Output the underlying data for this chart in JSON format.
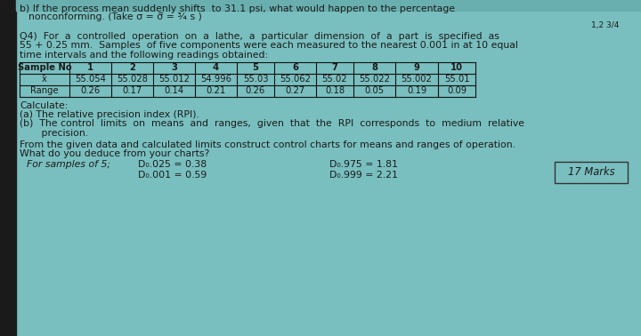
{
  "bg_color": "#7abfbf",
  "left_dark_color": "#2a2a2a",
  "top_line1": "b) If the process mean suddenly shifts  to 31.1 psi, what would happen to the percentage",
  "top_line2": "nonconforming. (Take σ = σ̅ = ¾ s )",
  "top_right": "1,2 3/4",
  "q4_lines": [
    "Q4)  For  a  controlled  operation  on  a  lathe,  a  particular  dimension  of  a  part  is  specified  as",
    "55 + 0.25 mm.  Samples  of five components were each measured to the nearest 0.001 in at 10 equal",
    "time intervals and the following readings obtained:"
  ],
  "table_headers": [
    "Sample No",
    "1",
    "2",
    "3",
    "4",
    "5",
    "6",
    "7",
    "8",
    "9",
    "10"
  ],
  "row_xbar": [
    "x̄",
    "55.054",
    "55.028",
    "55.012",
    "54.996",
    "55.03",
    "55.062",
    "55.02",
    "55.022",
    "55.002",
    "55.01"
  ],
  "row_range": [
    "Range",
    "0.26",
    "0.17",
    "0.14",
    "0.21",
    "0.26",
    "0.27",
    "0.18",
    "0.05",
    "0.19",
    "0.09"
  ],
  "calculate": "Calculate:",
  "part_a": "(a) The relative precision index (RPI).",
  "part_b1": "(b)  The control  limits  on  means  and  ranges,  given  that  the  RPI  corresponds  to  medium  relative",
  "part_b2": "       precision.",
  "from_line": "From the given data and calculated limits construct control charts for means and ranges of operation.",
  "what_line": "What do you deduce from your charts?",
  "samples_label": "For samples of 5;",
  "d1": "D₀.025 = 0.38",
  "d2": "D₀.001 = 0.59",
  "d3": "D₀.975 = 1.81",
  "d4": "D₀.999 = 2.21",
  "marks": "17 Marks",
  "tc": "#1a1a1a",
  "fs": 7.8,
  "fs_table": 7.2
}
